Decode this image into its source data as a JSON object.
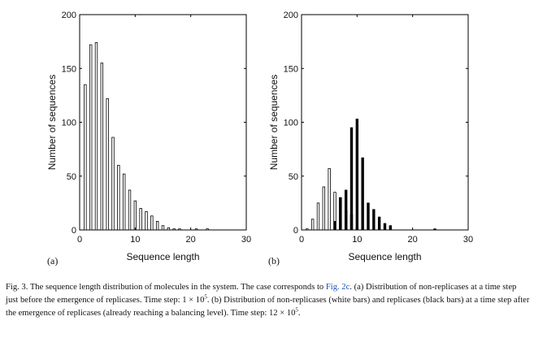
{
  "chart_data": [
    {
      "type": "bar",
      "panel": "(a)",
      "xlabel": "Sequence length",
      "ylabel": "Number of sequences",
      "xlim": [
        0,
        30
      ],
      "ylim": [
        0,
        200
      ],
      "xticks": [
        0,
        10,
        20,
        30
      ],
      "yticks": [
        0,
        50,
        100,
        150,
        200
      ],
      "series": [
        {
          "color": "#ffffff",
          "x": [
            1,
            2,
            3,
            4,
            5,
            6,
            7,
            8,
            9,
            10,
            11,
            12,
            13,
            14,
            15,
            16,
            17,
            18,
            21,
            23
          ],
          "values": [
            135,
            172,
            174,
            155,
            122,
            86,
            60,
            52,
            37,
            27,
            20,
            17,
            13,
            8,
            4,
            2,
            1,
            1,
            1,
            1
          ]
        }
      ]
    },
    {
      "type": "bar",
      "panel": "(b)",
      "xlabel": "Sequence length",
      "ylabel": "Number of sequences",
      "xlim": [
        0,
        30
      ],
      "ylim": [
        0,
        200
      ],
      "xticks": [
        0,
        10,
        20,
        30
      ],
      "yticks": [
        0,
        50,
        100,
        150,
        200
      ],
      "series": [
        {
          "color": "#ffffff",
          "x": [
            1,
            2,
            3,
            4,
            5,
            6,
            7,
            8,
            9,
            10
          ],
          "values": [
            1,
            10,
            25,
            40,
            57,
            35,
            30,
            18,
            14,
            2
          ]
        },
        {
          "color": "#000000",
          "x": [
            6,
            7,
            8,
            9,
            10,
            11,
            12,
            13,
            14,
            15,
            16,
            24
          ],
          "values": [
            8,
            30,
            37,
            95,
            103,
            67,
            25,
            19,
            12,
            6,
            4,
            1
          ]
        }
      ]
    }
  ],
  "caption": {
    "part1": "Fig. 3. The sequence length distribution of molecules in the system. The case corresponds to ",
    "ref": "Fig. 2c",
    "part2": ". (a) Distribution of non-replicases at a time step just before the emergence of replicases. Time step: 1 × 10",
    "exp1": "5",
    "part3": ". (b) Distribution of non-replicases (white bars) and replicases (black bars) at a time step after the emergence of replicases (already reaching a balancing level). Time step: 12 × 10",
    "exp2": "5",
    "part4": "."
  }
}
